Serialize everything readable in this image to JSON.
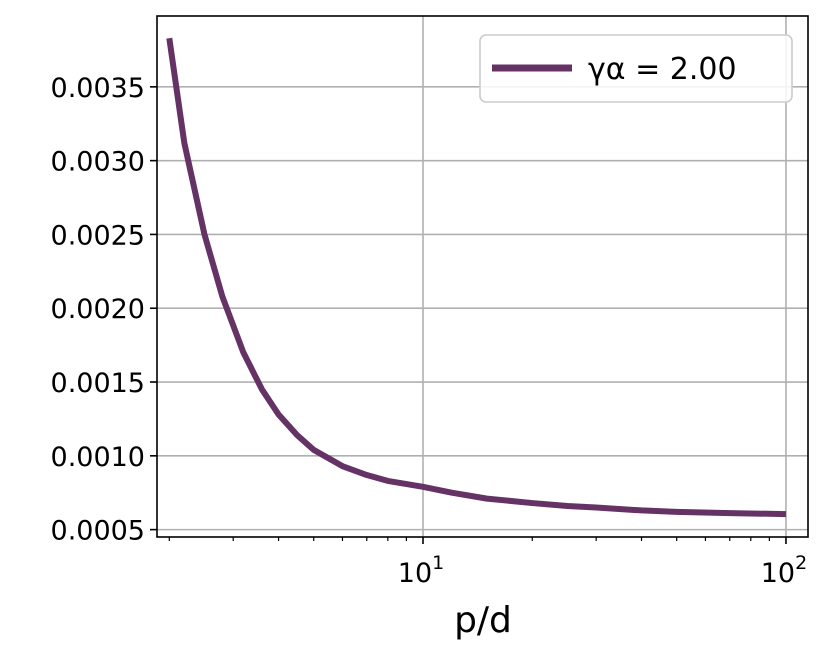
{
  "chart_data": {
    "type": "line",
    "title": "",
    "xlabel": "p/d",
    "ylabel": "",
    "xscale": "log",
    "xlim": [
      1.85,
      115
    ],
    "ylim": [
      0.00045,
      0.00398
    ],
    "grid": true,
    "legend_placement": "top-right",
    "x_ticks": [
      {
        "value": 10,
        "base": "10",
        "exp": "1"
      },
      {
        "value": 100,
        "base": "10",
        "exp": "2"
      }
    ],
    "y_ticks": [
      {
        "value": 0.0005,
        "label": "0.0005"
      },
      {
        "value": 0.001,
        "label": "0.0010"
      },
      {
        "value": 0.0015,
        "label": "0.0015"
      },
      {
        "value": 0.002,
        "label": "0.0020"
      },
      {
        "value": 0.0025,
        "label": "0.0025"
      },
      {
        "value": 0.003,
        "label": "0.0030"
      },
      {
        "value": 0.0035,
        "label": "0.0035"
      }
    ],
    "series": [
      {
        "name": "γα = 2.00",
        "color": "#653266",
        "x": [
          2.0,
          2.2,
          2.5,
          2.8,
          3.2,
          3.6,
          4.0,
          4.5,
          5.0,
          6.0,
          7.0,
          8.0,
          10,
          12,
          15,
          20,
          25,
          30,
          40,
          50,
          70,
          100
        ],
        "y": [
          0.00383,
          0.00312,
          0.0025,
          0.00208,
          0.0017,
          0.00145,
          0.00128,
          0.00114,
          0.00104,
          0.00093,
          0.00087,
          0.00083,
          0.00079,
          0.00075,
          0.00071,
          0.00068,
          0.00066,
          0.00065,
          0.00063,
          0.00062,
          0.000612,
          0.000605
        ]
      }
    ]
  }
}
